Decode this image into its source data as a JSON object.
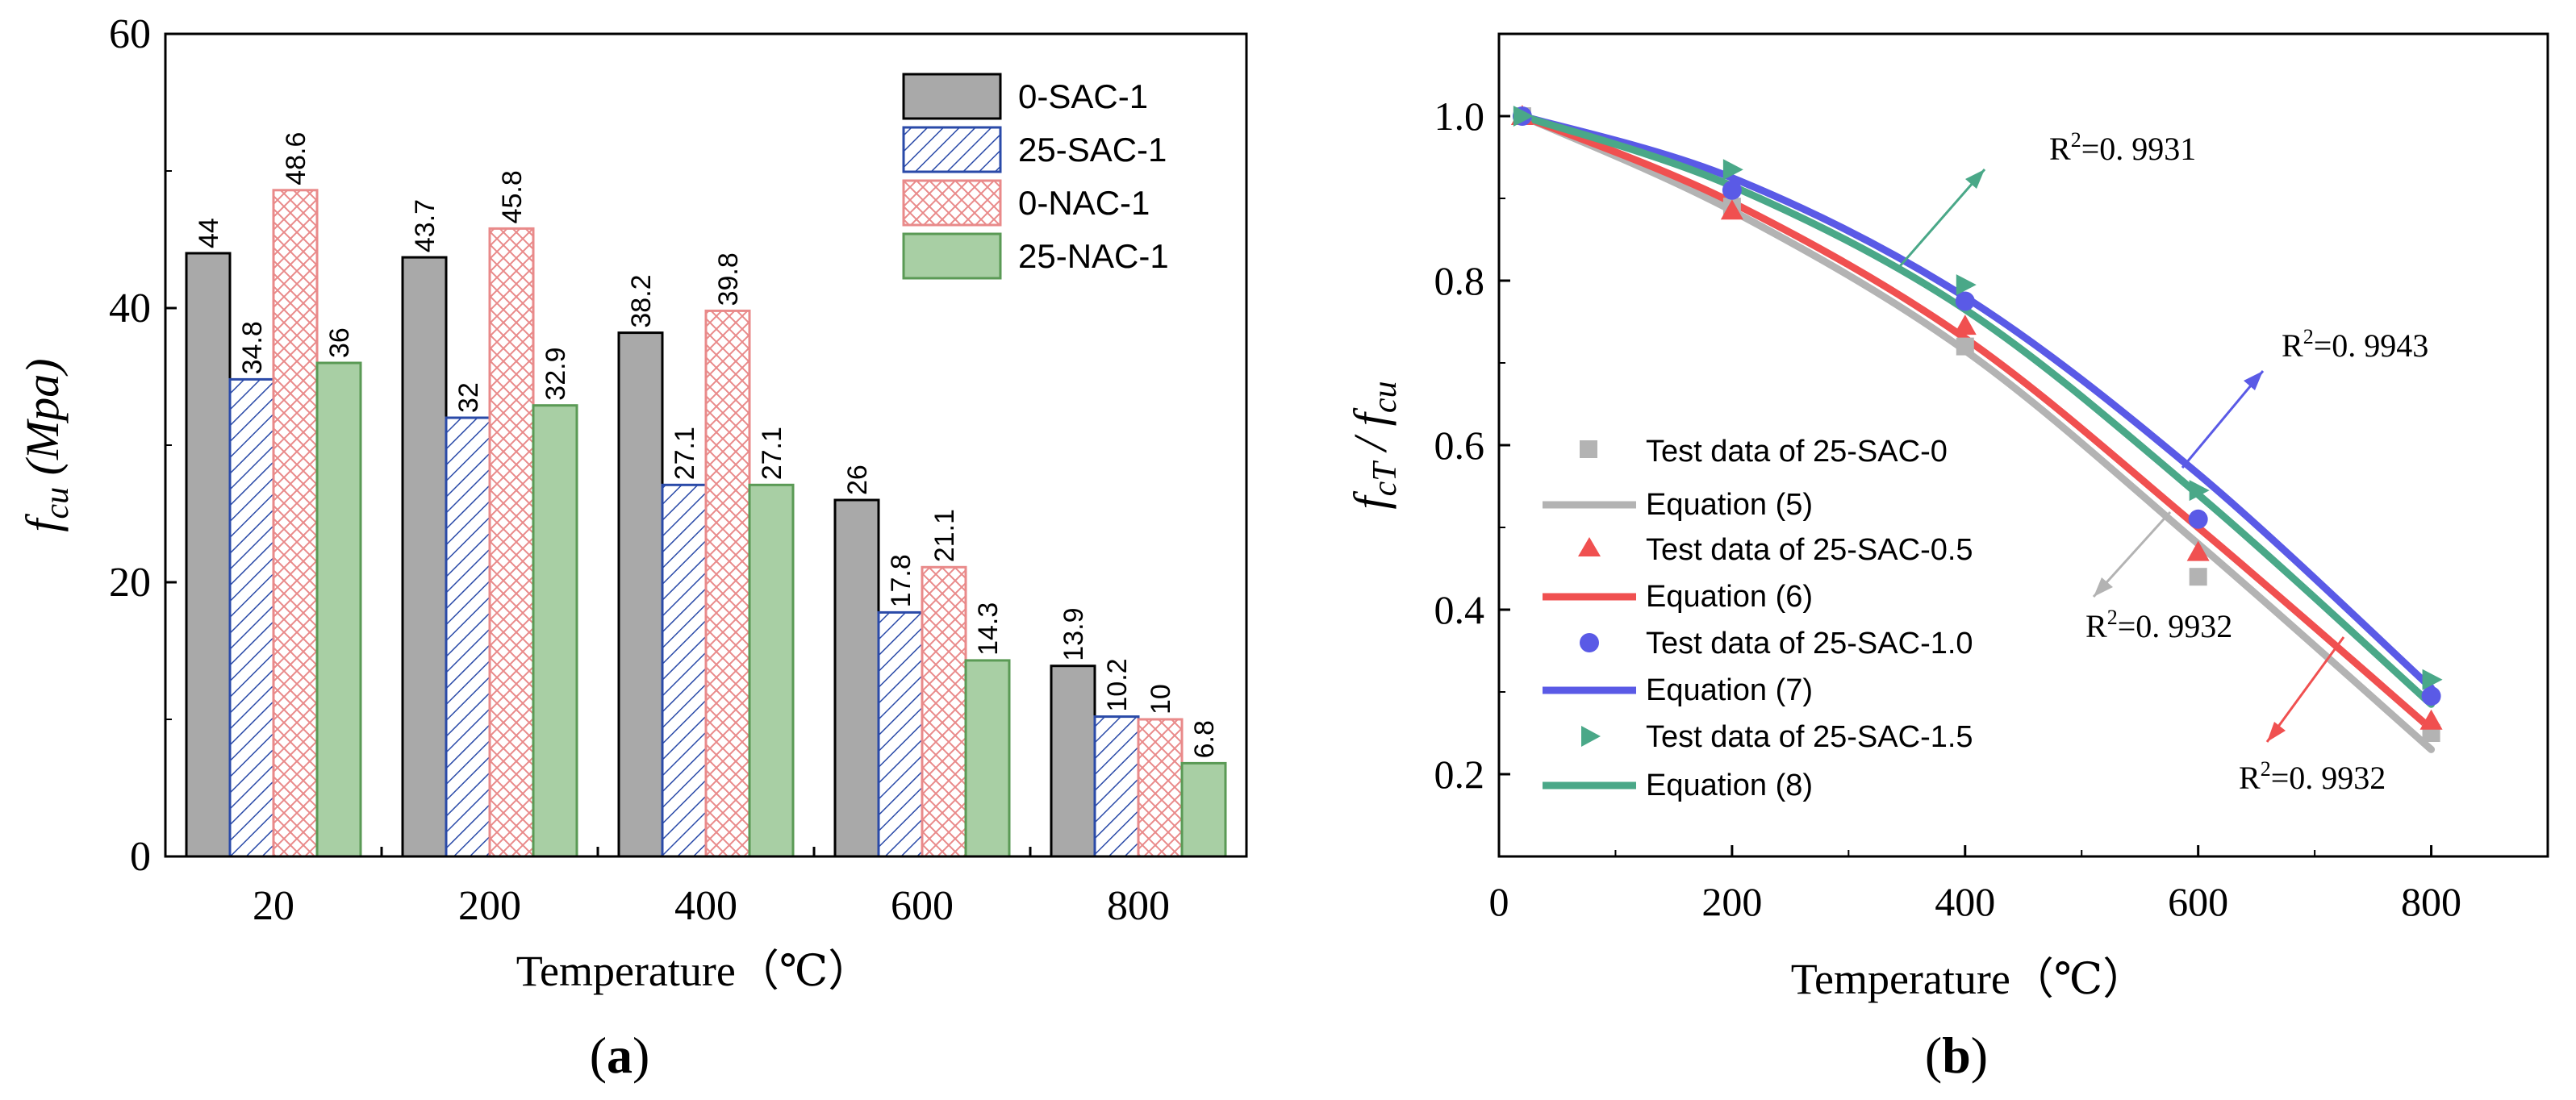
{
  "colors": {
    "sac1": "#a9a9a9",
    "sac25": "#2a4aa8",
    "nac0": "#e98a8a",
    "nac25": "#a8cfa4",
    "nac25_edge": "#5a9a55",
    "s0": "#b3b3b3",
    "s05": "#f05050",
    "s10": "#5a5ae6",
    "s15": "#4aa888"
  },
  "chart_data": [
    {
      "type": "bar",
      "panel_label": "(a)",
      "panel_letter": "a",
      "xlabel": "Temperature（℃）",
      "ylabel": "f",
      "ylabel_sub": "cu",
      "ylabel_unit": " (Mpa)",
      "ylim": [
        0,
        60
      ],
      "yticks": [
        "0",
        "20",
        "40",
        "60"
      ],
      "categories": [
        "20",
        "200",
        "400",
        "600",
        "800"
      ],
      "series": [
        {
          "name": "0-SAC-1",
          "values": [
            44,
            43.7,
            38.2,
            26,
            13.9
          ],
          "labels": [
            "44",
            "43.7",
            "38.2",
            "26",
            "13.9"
          ]
        },
        {
          "name": "25-SAC-1",
          "values": [
            34.8,
            32,
            27.1,
            17.8,
            10.2
          ],
          "labels": [
            "34.8",
            "32",
            "27.1",
            "17.8",
            "10.2"
          ]
        },
        {
          "name": "0-NAC-1",
          "values": [
            48.6,
            45.8,
            39.8,
            21.1,
            10
          ],
          "labels": [
            "48.6",
            "45.8",
            "39.8",
            "21.1",
            "10"
          ]
        },
        {
          "name": "25-NAC-1",
          "values": [
            36,
            32.9,
            27.1,
            14.3,
            6.8
          ],
          "labels": [
            "36",
            "32.9",
            "27.1",
            "14.3",
            "6.8"
          ]
        }
      ],
      "legend_position": "top-right"
    },
    {
      "type": "scatter",
      "panel_label": "(b)",
      "panel_letter": "b",
      "xlabel": "Temperature（℃）",
      "ylabel": "f",
      "ylabel_sub1": "cT",
      "ylabel_mid": " / ",
      "ylabel_sub2": "cu",
      "xlim": [
        0,
        900
      ],
      "ylim": [
        0.1,
        1.1
      ],
      "xticks": [
        "0",
        "200",
        "400",
        "600",
        "800"
      ],
      "yticks": [
        "0.2",
        "0.4",
        "0.6",
        "0.8",
        "1.0"
      ],
      "series": [
        {
          "name": "Test data of 25-SAC-0",
          "marker": "square",
          "x": [
            20,
            200,
            400,
            600,
            800
          ],
          "y": [
            1.0,
            0.89,
            0.72,
            0.44,
            0.25
          ]
        },
        {
          "name": "Test data of 25-SAC-0.5",
          "marker": "triangle-up",
          "x": [
            20,
            200,
            400,
            600,
            800
          ],
          "y": [
            1.0,
            0.885,
            0.745,
            0.47,
            0.265
          ]
        },
        {
          "name": "Test data of 25-SAC-1.0",
          "marker": "circle",
          "x": [
            20,
            200,
            400,
            600,
            800
          ],
          "y": [
            1.0,
            0.91,
            0.775,
            0.51,
            0.295
          ]
        },
        {
          "name": "Test data of 25-SAC-1.5",
          "marker": "triangle-right",
          "x": [
            20,
            200,
            400,
            600,
            800
          ],
          "y": [
            1.0,
            0.935,
            0.795,
            0.545,
            0.315
          ]
        }
      ],
      "fits": [
        {
          "name": "Equation (5)",
          "x": [
            20,
            200,
            400,
            600,
            800
          ],
          "y": [
            1.0,
            0.885,
            0.715,
            0.48,
            0.23
          ]
        },
        {
          "name": "Equation (6)",
          "x": [
            20,
            200,
            400,
            600,
            800
          ],
          "y": [
            1.0,
            0.895,
            0.73,
            0.5,
            0.255
          ]
        },
        {
          "name": "Equation (7)",
          "x": [
            20,
            200,
            400,
            600,
            800
          ],
          "y": [
            1.0,
            0.925,
            0.78,
            0.565,
            0.305
          ]
        },
        {
          "name": "Equation (8)",
          "x": [
            20,
            200,
            400,
            600,
            800
          ],
          "y": [
            1.0,
            0.915,
            0.765,
            0.54,
            0.285
          ]
        }
      ],
      "annotations": [
        {
          "base": "R",
          "sup": "2",
          "rest": "=0. 9931"
        },
        {
          "base": "R",
          "sup": "2",
          "rest": "=0. 9943"
        },
        {
          "base": "R",
          "sup": "2",
          "rest": "=0. 9932"
        },
        {
          "base": "R",
          "sup": "2",
          "rest": "=0. 9932"
        }
      ],
      "legend_position": "lower-left"
    }
  ]
}
